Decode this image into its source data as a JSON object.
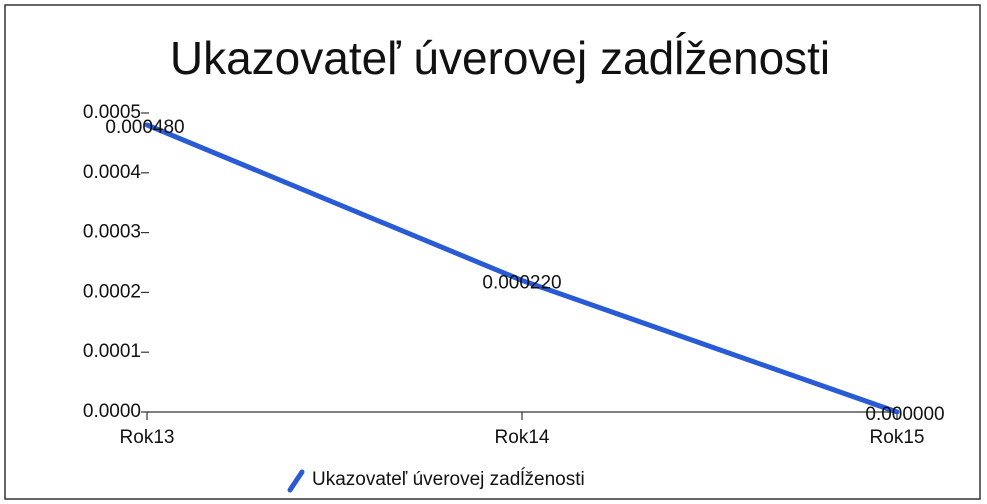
{
  "chart_data": {
    "type": "line",
    "title": "Ukazovateľ úverovej zadĺženosti",
    "categories": [
      "Rok13",
      "Rok14",
      "Rok15"
    ],
    "series": [
      {
        "name": "Ukazovateľ úverovej zadĺženosti",
        "color": "#2a5bd7",
        "values": [
          0.00048,
          0.00022,
          0
        ],
        "value_labels": [
          "0.000480",
          "0.000220",
          "0.000000"
        ]
      }
    ],
    "ylim": [
      0,
      0.0005
    ],
    "yticks": [
      {
        "value": 0,
        "label": "0.0000"
      },
      0.0001,
      0.0002,
      0.0003,
      0.0004,
      0.0005
    ],
    "grid": false,
    "legend": "bottom"
  }
}
